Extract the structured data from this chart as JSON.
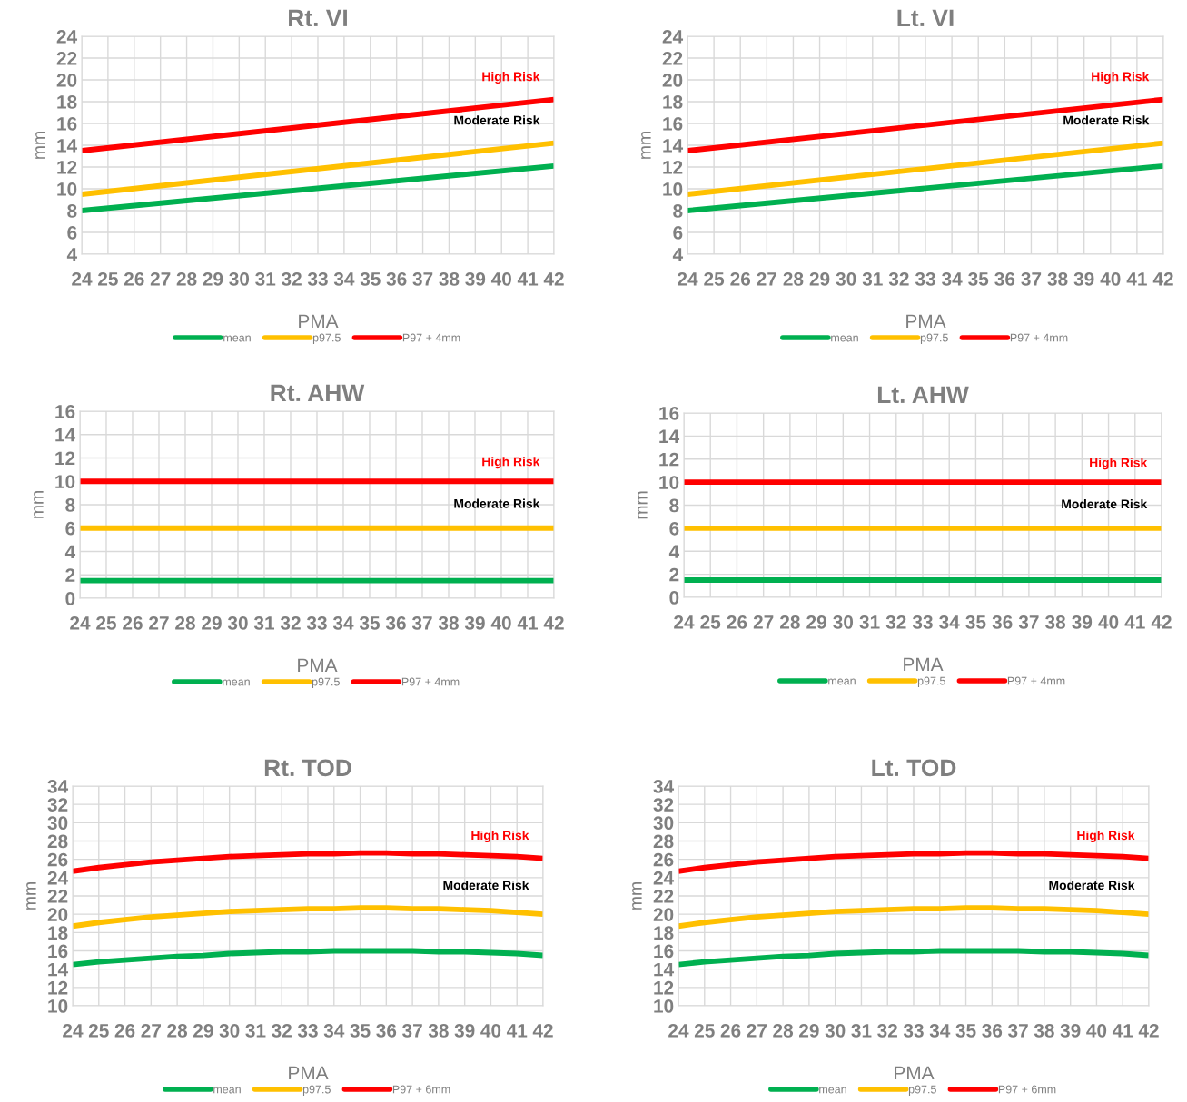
{
  "chart_data": [
    {
      "type": "line",
      "title": "Rt. VI",
      "xlabel": "PMA",
      "ylabel": "mm",
      "xlim": [
        24,
        42
      ],
      "xticks": [
        24,
        25,
        26,
        27,
        28,
        29,
        30,
        31,
        32,
        33,
        34,
        35,
        36,
        37,
        38,
        39,
        40,
        41,
        42
      ],
      "ylim": [
        4,
        24
      ],
      "yticks": [
        4,
        6,
        8,
        10,
        12,
        14,
        16,
        18,
        20,
        22,
        24
      ],
      "grid": true,
      "legend": "bottom",
      "line_style": "solid",
      "marker": "none",
      "series": [
        {
          "name": "mean",
          "color": "#00b050",
          "x": [
            24,
            42
          ],
          "values": [
            8.0,
            12.1
          ]
        },
        {
          "name": "p97.5",
          "color": "#ffc000",
          "x": [
            24,
            42
          ],
          "values": [
            9.5,
            14.2
          ]
        },
        {
          "name": "P97 + 4mm",
          "color": "#ff0000",
          "x": [
            24,
            42
          ],
          "values": [
            13.5,
            18.2
          ]
        }
      ],
      "annotations": [
        "High Risk",
        "Moderate Risk"
      ]
    },
    {
      "type": "line",
      "title": "Lt. VI",
      "xlabel": "PMA",
      "ylabel": "mm",
      "xlim": [
        24,
        42
      ],
      "xticks": [
        24,
        25,
        26,
        27,
        28,
        29,
        30,
        31,
        32,
        33,
        34,
        35,
        36,
        37,
        38,
        39,
        40,
        41,
        42
      ],
      "ylim": [
        4,
        24
      ],
      "yticks": [
        4,
        6,
        8,
        10,
        12,
        14,
        16,
        18,
        20,
        22,
        24
      ],
      "grid": true,
      "legend": "bottom",
      "line_style": "solid",
      "marker": "none",
      "series": [
        {
          "name": "mean",
          "color": "#00b050",
          "x": [
            24,
            42
          ],
          "values": [
            8.0,
            12.1
          ]
        },
        {
          "name": "p97.5",
          "color": "#ffc000",
          "x": [
            24,
            42
          ],
          "values": [
            9.5,
            14.2
          ]
        },
        {
          "name": "P97 + 4mm",
          "color": "#ff0000",
          "x": [
            24,
            42
          ],
          "values": [
            13.5,
            18.2
          ]
        }
      ],
      "annotations": [
        "High Risk",
        "Moderate Risk"
      ]
    },
    {
      "type": "line",
      "title": "Rt. AHW",
      "xlabel": "PMA",
      "ylabel": "mm",
      "xlim": [
        24,
        42
      ],
      "xticks": [
        24,
        25,
        26,
        27,
        28,
        29,
        30,
        31,
        32,
        33,
        34,
        35,
        36,
        37,
        38,
        39,
        40,
        41,
        42
      ],
      "ylim": [
        0,
        16
      ],
      "yticks": [
        0,
        2,
        4,
        6,
        8,
        10,
        12,
        14,
        16
      ],
      "grid": true,
      "legend": "bottom",
      "line_style": "solid",
      "marker": "none",
      "series": [
        {
          "name": "mean",
          "color": "#00b050",
          "x": [
            24,
            42
          ],
          "values": [
            1.5,
            1.5
          ]
        },
        {
          "name": "p97.5",
          "color": "#ffc000",
          "x": [
            24,
            42
          ],
          "values": [
            6,
            6
          ]
        },
        {
          "name": "P97 + 4mm",
          "color": "#ff0000",
          "x": [
            24,
            42
          ],
          "values": [
            10,
            10
          ]
        }
      ],
      "annotations": [
        "High Risk",
        "Moderate Risk"
      ]
    },
    {
      "type": "line",
      "title": "Lt. AHW",
      "xlabel": "PMA",
      "ylabel": "mm",
      "xlim": [
        24,
        42
      ],
      "xticks": [
        24,
        25,
        26,
        27,
        28,
        29,
        30,
        31,
        32,
        33,
        34,
        35,
        36,
        37,
        38,
        39,
        40,
        41,
        42
      ],
      "ylim": [
        0,
        16
      ],
      "yticks": [
        0,
        2,
        4,
        6,
        8,
        10,
        12,
        14,
        16
      ],
      "grid": true,
      "legend": "bottom",
      "line_style": "solid",
      "marker": "none",
      "series": [
        {
          "name": "mean",
          "color": "#00b050",
          "x": [
            24,
            42
          ],
          "values": [
            1.5,
            1.5
          ]
        },
        {
          "name": "p97.5",
          "color": "#ffc000",
          "x": [
            24,
            42
          ],
          "values": [
            6,
            6
          ]
        },
        {
          "name": "P97 + 4mm",
          "color": "#ff0000",
          "x": [
            24,
            42
          ],
          "values": [
            10,
            10
          ]
        }
      ],
      "annotations": [
        "High Risk",
        "Moderate Risk"
      ]
    },
    {
      "type": "line",
      "title": "Rt. TOD",
      "xlabel": "PMA",
      "ylabel": "mm",
      "xlim": [
        24,
        42
      ],
      "xticks": [
        24,
        25,
        26,
        27,
        28,
        29,
        30,
        31,
        32,
        33,
        34,
        35,
        36,
        37,
        38,
        39,
        40,
        41,
        42
      ],
      "ylim": [
        10,
        34
      ],
      "yticks": [
        10,
        12,
        14,
        16,
        18,
        20,
        22,
        24,
        26,
        28,
        30,
        32,
        34
      ],
      "grid": true,
      "legend": "bottom",
      "line_style": "solid",
      "marker": "none",
      "series": [
        {
          "name": "mean",
          "color": "#00b050",
          "x": [
            24,
            25,
            26,
            27,
            28,
            29,
            30,
            31,
            32,
            33,
            34,
            35,
            36,
            37,
            38,
            39,
            40,
            41,
            42
          ],
          "values": [
            14.5,
            14.8,
            15.0,
            15.2,
            15.4,
            15.5,
            15.7,
            15.8,
            15.9,
            15.9,
            16.0,
            16.0,
            16.0,
            16.0,
            15.9,
            15.9,
            15.8,
            15.7,
            15.5
          ]
        },
        {
          "name": "p97.5",
          "color": "#ffc000",
          "x": [
            24,
            25,
            26,
            27,
            28,
            29,
            30,
            31,
            32,
            33,
            34,
            35,
            36,
            37,
            38,
            39,
            40,
            41,
            42
          ],
          "values": [
            18.7,
            19.1,
            19.4,
            19.7,
            19.9,
            20.1,
            20.3,
            20.4,
            20.5,
            20.6,
            20.6,
            20.7,
            20.7,
            20.6,
            20.6,
            20.5,
            20.4,
            20.2,
            20.0
          ]
        },
        {
          "name": "P97 + 6mm",
          "color": "#ff0000",
          "x": [
            24,
            25,
            26,
            27,
            28,
            29,
            30,
            31,
            32,
            33,
            34,
            35,
            36,
            37,
            38,
            39,
            40,
            41,
            42
          ],
          "values": [
            24.7,
            25.1,
            25.4,
            25.7,
            25.9,
            26.1,
            26.3,
            26.4,
            26.5,
            26.6,
            26.6,
            26.7,
            26.7,
            26.6,
            26.6,
            26.5,
            26.4,
            26.3,
            26.1
          ]
        }
      ],
      "annotations": [
        "High Risk",
        "Moderate Risk"
      ]
    },
    {
      "type": "line",
      "title": "Lt. TOD",
      "xlabel": "PMA",
      "ylabel": "mm",
      "xlim": [
        24,
        42
      ],
      "xticks": [
        24,
        25,
        26,
        27,
        28,
        29,
        30,
        31,
        32,
        33,
        34,
        35,
        36,
        37,
        38,
        39,
        40,
        41,
        42
      ],
      "ylim": [
        10,
        34
      ],
      "yticks": [
        10,
        12,
        14,
        16,
        18,
        20,
        22,
        24,
        26,
        28,
        30,
        32,
        34
      ],
      "grid": true,
      "legend": "bottom",
      "line_style": "solid",
      "marker": "none",
      "series": [
        {
          "name": "mean",
          "color": "#00b050",
          "x": [
            24,
            25,
            26,
            27,
            28,
            29,
            30,
            31,
            32,
            33,
            34,
            35,
            36,
            37,
            38,
            39,
            40,
            41,
            42
          ],
          "values": [
            14.5,
            14.8,
            15.0,
            15.2,
            15.4,
            15.5,
            15.7,
            15.8,
            15.9,
            15.9,
            16.0,
            16.0,
            16.0,
            16.0,
            15.9,
            15.9,
            15.8,
            15.7,
            15.5
          ]
        },
        {
          "name": "p97.5",
          "color": "#ffc000",
          "x": [
            24,
            25,
            26,
            27,
            28,
            29,
            30,
            31,
            32,
            33,
            34,
            35,
            36,
            37,
            38,
            39,
            40,
            41,
            42
          ],
          "values": [
            18.7,
            19.1,
            19.4,
            19.7,
            19.9,
            20.1,
            20.3,
            20.4,
            20.5,
            20.6,
            20.6,
            20.7,
            20.7,
            20.6,
            20.6,
            20.5,
            20.4,
            20.2,
            20.0
          ]
        },
        {
          "name": "P97 + 6mm",
          "color": "#ff0000",
          "x": [
            24,
            25,
            26,
            27,
            28,
            29,
            30,
            31,
            32,
            33,
            34,
            35,
            36,
            37,
            38,
            39,
            40,
            41,
            42
          ],
          "values": [
            24.7,
            25.1,
            25.4,
            25.7,
            25.9,
            26.1,
            26.3,
            26.4,
            26.5,
            26.6,
            26.6,
            26.7,
            26.7,
            26.6,
            26.6,
            26.5,
            26.4,
            26.3,
            26.1
          ]
        }
      ],
      "annotations": [
        "High Risk",
        "Moderate Risk"
      ]
    }
  ]
}
